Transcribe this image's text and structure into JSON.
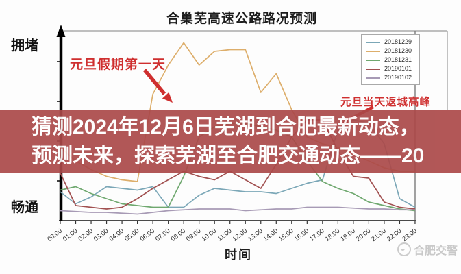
{
  "chart_data": {
    "type": "line",
    "title": "合巢芜高速公路路况预测",
    "xlabel": "时间",
    "ylabel_top": "拥堵",
    "ylabel_bottom": "畅通",
    "y_axis_note": "qualitative congestion level, 0 = 畅通 (free-flowing) to 10 = 拥堵 (congested); middle band hidden by overlay banner",
    "grid": false,
    "legend_position": "upper right",
    "x_ticks": [
      "00:00",
      "01:00",
      "02:00",
      "03:00",
      "04:00",
      "05:00",
      "06:00",
      "07:00",
      "08:00",
      "09:00",
      "10:00",
      "11:00",
      "12:00",
      "13:00",
      "14:00",
      "15:00",
      "16:00",
      "17:00",
      "18:00",
      "19:00",
      "20:00",
      "21:00",
      "22:00",
      "23:00"
    ],
    "series": [
      {
        "name": "20181229",
        "color": "#7ba7b7",
        "values": [
          1.4,
          0.7,
          1.1,
          1.7,
          1.6,
          1.5,
          1.7,
          0.5,
          0.5,
          1.2,
          1.6,
          1.5,
          1.4,
          1.4,
          1.3,
          1.6,
          1.9,
          2.1,
          5.0,
          5.6,
          5.4,
          4.2,
          1.0,
          0.5
        ]
      },
      {
        "name": "20181230",
        "color": "#ddae6b",
        "values": [
          4.0,
          3.2,
          2.7,
          2.3,
          2.1,
          2.0,
          7.1,
          8.8,
          10.1,
          8.8,
          9.6,
          9.7,
          9.7,
          7.2,
          8.3,
          6.2,
          4.6,
          4.2,
          4.0,
          3.6,
          3.2,
          2.8,
          2.6,
          2.6
        ]
      },
      {
        "name": "20181231",
        "color": "#6fa86f",
        "values": [
          1.5,
          1.7,
          1.3,
          1.0,
          0.7,
          0.6,
          0.5,
          0.5,
          2.3,
          4.6,
          5.2,
          5.4,
          5.4,
          5.2,
          5.0,
          4.6,
          3.2,
          2.0,
          1.6,
          1.3,
          0.8,
          0.6,
          0.4,
          0.3
        ]
      },
      {
        "name": "20190101",
        "color": "#a15050",
        "values": [
          2.5,
          0.6,
          0.5,
          0.4,
          0.5,
          1.0,
          1.6,
          2.1,
          2.6,
          2.3,
          2.1,
          2.6,
          2.1,
          1.6,
          3.0,
          4.6,
          5.6,
          5.6,
          3.8,
          2.3,
          2.2,
          0.8,
          0.5,
          0.4
        ]
      },
      {
        "name": "20190102",
        "color": "#a79ab5",
        "values": [
          0.3,
          0.25,
          0.2,
          0.2,
          0.15,
          0.1,
          0.2,
          0.3,
          0.35,
          0.4,
          0.4,
          0.4,
          0.3,
          0.35,
          0.4,
          0.4,
          0.5,
          0.5,
          0.5,
          0.45,
          0.4,
          0.4,
          0.35,
          0.35
        ]
      }
    ],
    "annotations": [
      {
        "text": "元旦假期第一天",
        "color": "#cf2f2f",
        "points_at": "morning peak of 20181230 line"
      },
      {
        "text": "元旦当天返城高峰",
        "color": "#cf2f2f",
        "points_at": "evening return-to-city peak on 20190101"
      }
    ]
  },
  "overlay_banner": {
    "line1": "猜测2024年12月6日芜湖到合肥最新动态，",
    "line2": "预测未来，探索芜湖至合肥交通动态——20",
    "background": "#ab4949",
    "text_color": "#ffffff"
  },
  "watermark": {
    "label": "合肥交警",
    "color": "#c9c9c9"
  }
}
